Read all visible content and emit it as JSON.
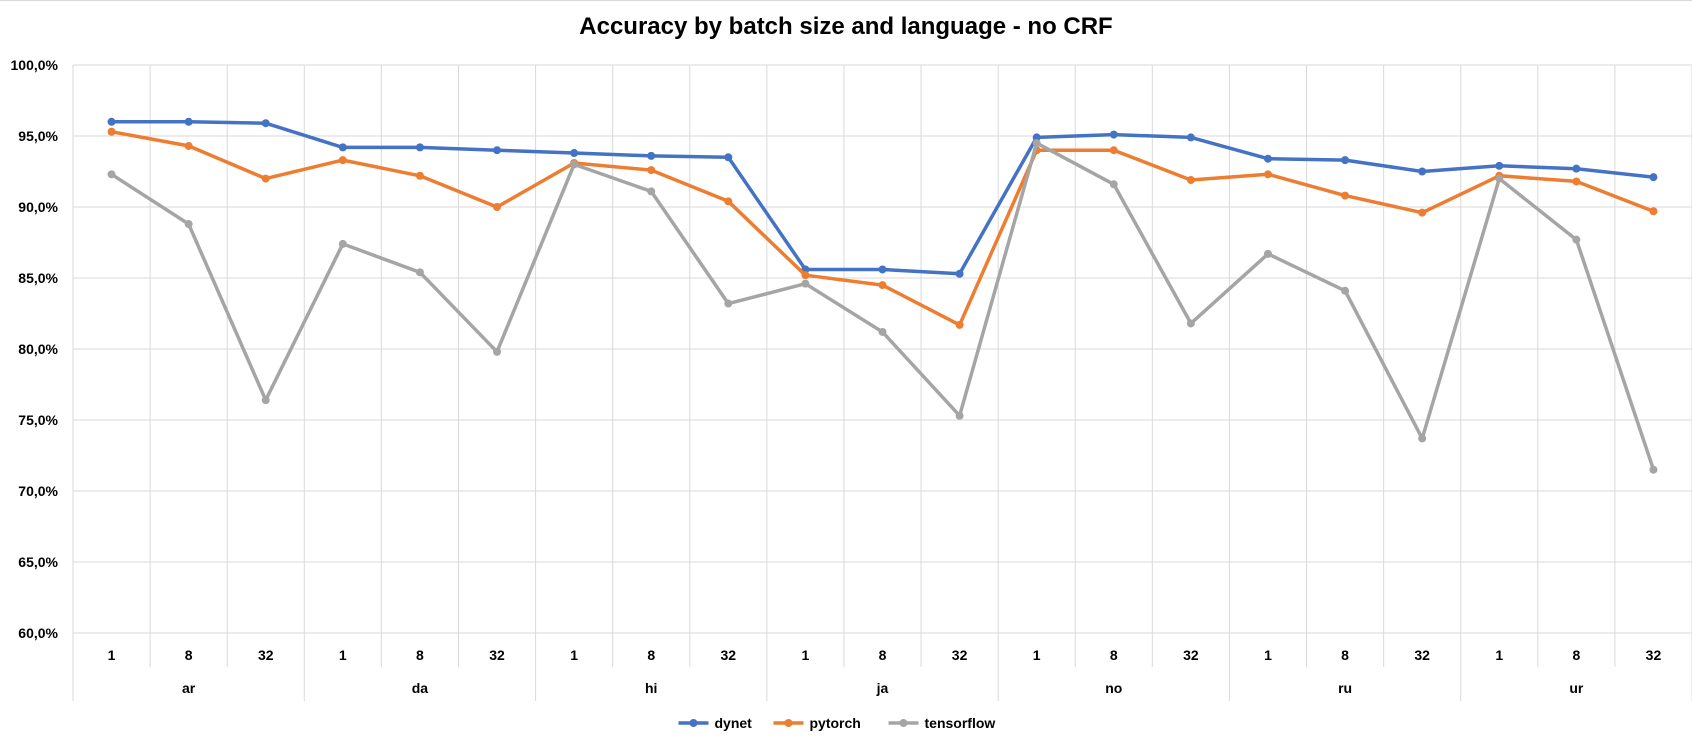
{
  "chart_data": {
    "type": "line",
    "title": "Accuracy by batch size and language - no CRF",
    "xlabel": "",
    "ylabel": "",
    "ylim": [
      60,
      100
    ],
    "y_ticks": [
      60,
      65,
      70,
      75,
      80,
      85,
      90,
      95,
      100
    ],
    "y_tick_labels": [
      "60,0%",
      "65,0%",
      "70,0%",
      "75,0%",
      "80,0%",
      "85,0%",
      "90,0%",
      "95,0%",
      "100,0%"
    ],
    "grid": true,
    "legend_position": "bottom",
    "groups": [
      "ar",
      "da",
      "hi",
      "ja",
      "no",
      "ru",
      "ur"
    ],
    "batch_sizes": [
      "1",
      "8",
      "32"
    ],
    "categories": [
      "ar 1",
      "ar 8",
      "ar 32",
      "da 1",
      "da 8",
      "da 32",
      "hi 1",
      "hi 8",
      "hi 32",
      "ja 1",
      "ja 8",
      "ja 32",
      "no 1",
      "no 8",
      "no 32",
      "ru 1",
      "ru 8",
      "ru 32",
      "ur 1",
      "ur 8",
      "ur 32"
    ],
    "series": [
      {
        "name": "dynet",
        "color": "#4472C4",
        "values": [
          96.0,
          96.0,
          95.9,
          94.2,
          94.2,
          94.0,
          93.8,
          93.6,
          93.5,
          85.6,
          85.6,
          85.3,
          94.9,
          95.1,
          94.9,
          93.4,
          93.3,
          92.5,
          92.9,
          92.7,
          92.1
        ]
      },
      {
        "name": "pytorch",
        "color": "#ED7D31",
        "values": [
          95.3,
          94.3,
          92.0,
          93.3,
          92.2,
          90.0,
          93.1,
          92.6,
          90.4,
          85.2,
          84.5,
          81.7,
          94.0,
          94.0,
          91.9,
          92.3,
          90.8,
          89.6,
          92.2,
          91.8,
          89.7
        ]
      },
      {
        "name": "tensorflow",
        "color": "#A5A5A5",
        "values": [
          92.3,
          88.8,
          76.4,
          87.4,
          85.4,
          79.8,
          93.0,
          91.1,
          83.2,
          84.6,
          81.2,
          75.3,
          94.5,
          91.6,
          81.8,
          86.7,
          84.1,
          73.7,
          92.0,
          87.7,
          71.5
        ]
      }
    ]
  }
}
